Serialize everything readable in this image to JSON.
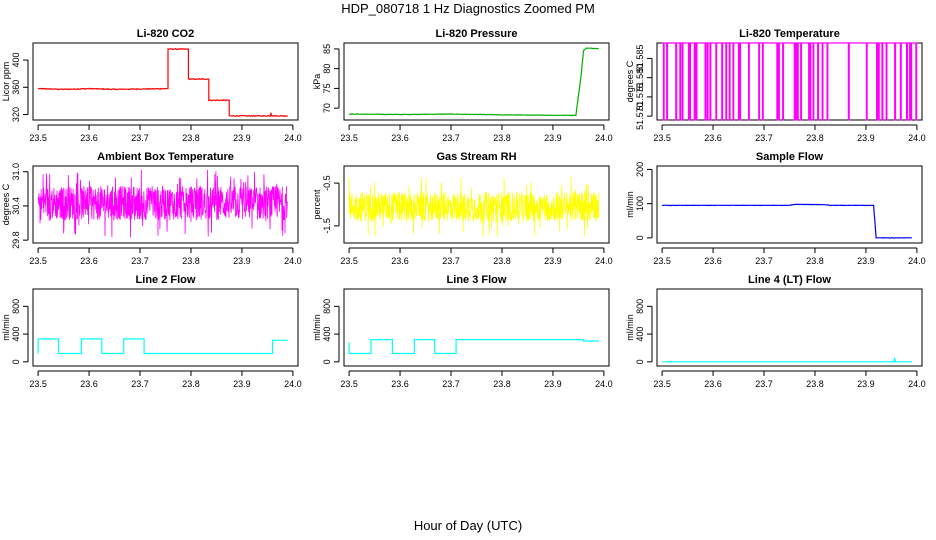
{
  "page_title": "HDP_080718  1 Hz Diagnostics Zoomed PM",
  "x_axis_caption": "Hour of Day (UTC)",
  "chart_data": [
    {
      "type": "line",
      "title": "Li-820 CO2",
      "ylabel": "Licor ppm",
      "color": "#ff0000",
      "x_ticks": [
        "23.5",
        "23.6",
        "23.7",
        "23.8",
        "23.9",
        "24.0"
      ],
      "xlim": [
        23.49,
        24.01
      ],
      "y_ticks": [
        "320",
        "360",
        "400"
      ],
      "ylim": [
        312,
        425
      ],
      "segments": [
        [
          23.5,
          358
        ],
        [
          23.55,
          357
        ],
        [
          23.6,
          358
        ],
        [
          23.65,
          357
        ],
        [
          23.755,
          358
        ],
        [
          23.755,
          416
        ],
        [
          23.795,
          416
        ],
        [
          23.795,
          372
        ],
        [
          23.835,
          372
        ],
        [
          23.835,
          341
        ],
        [
          23.875,
          341
        ],
        [
          23.875,
          318
        ],
        [
          23.955,
          318
        ],
        [
          23.957,
          322
        ],
        [
          23.959,
          318
        ],
        [
          23.99,
          318
        ]
      ],
      "noise": 1.2
    },
    {
      "type": "line",
      "title": "Li-820 Pressure",
      "ylabel": "kPa",
      "color": "#00b000",
      "x_ticks": [
        "23.5",
        "23.6",
        "23.7",
        "23.8",
        "23.9",
        "24.0"
      ],
      "xlim": [
        23.49,
        24.01
      ],
      "y_ticks": [
        "70",
        "75",
        "80",
        "85"
      ],
      "ylim": [
        67,
        86.5
      ],
      "segments": [
        [
          23.5,
          68.5
        ],
        [
          23.6,
          68.4
        ],
        [
          23.7,
          68.5
        ],
        [
          23.8,
          68.3
        ],
        [
          23.9,
          68.2
        ],
        [
          23.945,
          68.2
        ],
        [
          23.955,
          78
        ],
        [
          23.96,
          84.5
        ],
        [
          23.965,
          85.2
        ],
        [
          23.99,
          85.1
        ]
      ],
      "noise": 0.12
    },
    {
      "type": "line",
      "title": "Li-820 Temperature",
      "ylabel": "degrees C",
      "color": "#ff00ff",
      "x_ticks": [
        "23.5",
        "23.6",
        "23.7",
        "23.8",
        "23.9",
        "24.0"
      ],
      "xlim": [
        23.49,
        24.01
      ],
      "y_ticks": [
        "51.570",
        "51.575",
        "51.580",
        "51.585"
      ],
      "ylim": [
        51.569,
        51.589
      ],
      "levels": [
        51.589,
        51.569
      ],
      "pattern": "spikes"
    },
    {
      "type": "line",
      "title": "Ambient Box Temperature",
      "ylabel": "degrees C",
      "color": "#ff00ff",
      "x_ticks": [
        "23.5",
        "23.6",
        "23.7",
        "23.8",
        "23.9",
        "24.0"
      ],
      "xlim": [
        23.49,
        24.01
      ],
      "y_ticks": [
        "29.8",
        "30.4",
        "31.0"
      ],
      "ylim": [
        29.75,
        31.1
      ],
      "center": 30.45,
      "amplitude": 0.6,
      "pattern": "noise"
    },
    {
      "type": "line",
      "title": "Gas Stream RH",
      "ylabel": "percent",
      "color": "#ffff00",
      "x_ticks": [
        "23.5",
        "23.6",
        "23.7",
        "23.8",
        "23.9",
        "24.0"
      ],
      "xlim": [
        23.49,
        24.01
      ],
      "y_ticks": [
        "-1.5",
        "-0.5"
      ],
      "ylim": [
        -1.9,
        -0.1
      ],
      "center": -1.05,
      "amplitude": 0.7,
      "pattern": "noise"
    },
    {
      "type": "line",
      "title": "Sample Flow",
      "ylabel": "ml/min",
      "color": "#0000ff",
      "x_ticks": [
        "23.5",
        "23.6",
        "23.7",
        "23.8",
        "23.9",
        "24.0"
      ],
      "xlim": [
        23.49,
        24.01
      ],
      "y_ticks": [
        "0",
        "100",
        "200"
      ],
      "ylim": [
        -15,
        210
      ],
      "segments": [
        [
          23.5,
          95
        ],
        [
          23.75,
          95
        ],
        [
          23.76,
          98
        ],
        [
          23.82,
          97
        ],
        [
          23.83,
          95
        ],
        [
          23.915,
          95
        ],
        [
          23.92,
          0
        ],
        [
          23.99,
          0
        ]
      ],
      "noise": 1.0
    },
    {
      "type": "line",
      "title": "Line 2 Flow",
      "ylabel": "ml/min",
      "color": "#00ffff",
      "x_ticks": [
        "23.5",
        "23.6",
        "23.7",
        "23.8",
        "23.9",
        "24.0"
      ],
      "xlim": [
        23.49,
        24.01
      ],
      "y_ticks": [
        "0",
        "400",
        "800"
      ],
      "ylim": [
        -60,
        1050
      ],
      "segments": [
        [
          23.5,
          120
        ],
        [
          23.5,
          330
        ],
        [
          23.54,
          330
        ],
        [
          23.54,
          120
        ],
        [
          23.585,
          120
        ],
        [
          23.585,
          330
        ],
        [
          23.625,
          330
        ],
        [
          23.625,
          120
        ],
        [
          23.668,
          120
        ],
        [
          23.668,
          330
        ],
        [
          23.708,
          330
        ],
        [
          23.708,
          120
        ],
        [
          23.96,
          120
        ],
        [
          23.96,
          310
        ],
        [
          23.99,
          310
        ]
      ],
      "noise": 0
    },
    {
      "type": "line",
      "title": "Line 3 Flow",
      "ylabel": "ml/min",
      "color": "#00ffff",
      "x_ticks": [
        "23.5",
        "23.6",
        "23.7",
        "23.8",
        "23.9",
        "24.0"
      ],
      "xlim": [
        23.49,
        24.01
      ],
      "y_ticks": [
        "0",
        "400",
        "800"
      ],
      "ylim": [
        -60,
        1050
      ],
      "segments": [
        [
          23.5,
          280
        ],
        [
          23.5,
          120
        ],
        [
          23.543,
          120
        ],
        [
          23.543,
          320
        ],
        [
          23.585,
          320
        ],
        [
          23.585,
          120
        ],
        [
          23.628,
          120
        ],
        [
          23.628,
          320
        ],
        [
          23.668,
          320
        ],
        [
          23.668,
          120
        ],
        [
          23.71,
          120
        ],
        [
          23.71,
          320
        ],
        [
          23.96,
          320
        ],
        [
          23.96,
          300
        ],
        [
          23.99,
          300
        ]
      ],
      "noise": 0
    },
    {
      "type": "line",
      "title": "Line 4 (LT) Flow",
      "ylabel": "ml/min",
      "color": "#00ffff",
      "x_ticks": [
        "23.5",
        "23.6",
        "23.7",
        "23.8",
        "23.9",
        "24.0"
      ],
      "xlim": [
        23.49,
        24.01
      ],
      "y_ticks": [
        "0",
        "400",
        "800"
      ],
      "ylim": [
        -60,
        1050
      ],
      "segments": [
        [
          23.5,
          0
        ],
        [
          23.955,
          0
        ],
        [
          23.956,
          60
        ],
        [
          23.958,
          0
        ],
        [
          23.99,
          0
        ]
      ],
      "noise": 0
    }
  ]
}
